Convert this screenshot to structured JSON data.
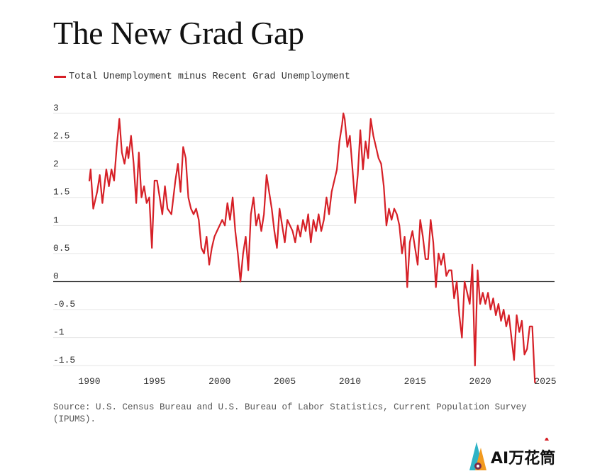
{
  "title": "The New Grad Gap",
  "source": "Source: U.S. Census Bureau and U.S. Bureau of Labor Statistics, Current Population Survey (IPUMS).",
  "colors": {
    "line": "#d62027",
    "grid": "#e6e6e6",
    "zero_line": "#333333",
    "text": "#333333"
  },
  "watermark": {
    "text": "AI万花筒"
  },
  "chart_data": {
    "type": "line",
    "title": "The New Grad Gap",
    "legend": "top-left",
    "grid": true,
    "xlabel": "",
    "ylabel": "",
    "xlim": [
      1990,
      2025
    ],
    "ylim": [
      -1.75,
      3
    ],
    "x_ticks": [
      1990,
      1995,
      2000,
      2005,
      2010,
      2015,
      2020,
      2025
    ],
    "y_ticks": [
      3,
      2.5,
      2,
      1.5,
      1,
      0.5,
      0,
      -0.5,
      -1,
      -1.5
    ],
    "y_tick_labels": [
      "3",
      "2.5",
      "2",
      "1.5",
      "1",
      "0.5",
      "0",
      "-0.5",
      "-1",
      "-1.5"
    ],
    "series": [
      {
        "name": "Total Unemployment minus Recent Grad Unemployment",
        "color": "#d62027",
        "points": [
          [
            1990.0,
            1.8
          ],
          [
            1990.1,
            2.0
          ],
          [
            1990.3,
            1.3
          ],
          [
            1990.6,
            1.6
          ],
          [
            1990.8,
            1.9
          ],
          [
            1991.0,
            1.4
          ],
          [
            1991.3,
            2.0
          ],
          [
            1991.5,
            1.7
          ],
          [
            1991.7,
            2.0
          ],
          [
            1991.9,
            1.8
          ],
          [
            1992.1,
            2.4
          ],
          [
            1992.3,
            2.9
          ],
          [
            1992.5,
            2.3
          ],
          [
            1992.7,
            2.1
          ],
          [
            1992.9,
            2.4
          ],
          [
            1993.0,
            2.2
          ],
          [
            1993.2,
            2.6
          ],
          [
            1993.4,
            2.1
          ],
          [
            1993.6,
            1.4
          ],
          [
            1993.8,
            2.3
          ],
          [
            1994.0,
            1.5
          ],
          [
            1994.2,
            1.7
          ],
          [
            1994.4,
            1.4
          ],
          [
            1994.6,
            1.5
          ],
          [
            1994.8,
            0.6
          ],
          [
            1995.0,
            1.8
          ],
          [
            1995.2,
            1.8
          ],
          [
            1995.4,
            1.5
          ],
          [
            1995.6,
            1.2
          ],
          [
            1995.8,
            1.7
          ],
          [
            1996.0,
            1.3
          ],
          [
            1996.3,
            1.2
          ],
          [
            1996.6,
            1.8
          ],
          [
            1996.8,
            2.1
          ],
          [
            1997.0,
            1.6
          ],
          [
            1997.2,
            2.4
          ],
          [
            1997.4,
            2.2
          ],
          [
            1997.6,
            1.5
          ],
          [
            1997.8,
            1.3
          ],
          [
            1998.0,
            1.2
          ],
          [
            1998.2,
            1.3
          ],
          [
            1998.4,
            1.1
          ],
          [
            1998.6,
            0.6
          ],
          [
            1998.8,
            0.5
          ],
          [
            1999.0,
            0.8
          ],
          [
            1999.2,
            0.3
          ],
          [
            1999.4,
            0.6
          ],
          [
            1999.6,
            0.8
          ],
          [
            1999.8,
            0.9
          ],
          [
            2000.0,
            1.0
          ],
          [
            2000.2,
            1.1
          ],
          [
            2000.4,
            1.0
          ],
          [
            2000.6,
            1.4
          ],
          [
            2000.8,
            1.1
          ],
          [
            2001.0,
            1.5
          ],
          [
            2001.2,
            0.9
          ],
          [
            2001.4,
            0.5
          ],
          [
            2001.6,
            0.0
          ],
          [
            2001.8,
            0.5
          ],
          [
            2002.0,
            0.8
          ],
          [
            2002.2,
            0.2
          ],
          [
            2002.4,
            1.2
          ],
          [
            2002.6,
            1.5
          ],
          [
            2002.8,
            1.0
          ],
          [
            2003.0,
            1.2
          ],
          [
            2003.2,
            0.9
          ],
          [
            2003.4,
            1.2
          ],
          [
            2003.6,
            1.9
          ],
          [
            2003.8,
            1.6
          ],
          [
            2004.0,
            1.3
          ],
          [
            2004.2,
            0.9
          ],
          [
            2004.4,
            0.6
          ],
          [
            2004.6,
            1.3
          ],
          [
            2004.8,
            1.0
          ],
          [
            2005.0,
            0.7
          ],
          [
            2005.2,
            1.1
          ],
          [
            2005.4,
            1.0
          ],
          [
            2005.6,
            0.9
          ],
          [
            2005.8,
            0.7
          ],
          [
            2006.0,
            1.0
          ],
          [
            2006.2,
            0.8
          ],
          [
            2006.4,
            1.1
          ],
          [
            2006.6,
            0.9
          ],
          [
            2006.8,
            1.2
          ],
          [
            2007.0,
            0.7
          ],
          [
            2007.2,
            1.1
          ],
          [
            2007.4,
            0.9
          ],
          [
            2007.6,
            1.2
          ],
          [
            2007.8,
            0.9
          ],
          [
            2008.0,
            1.1
          ],
          [
            2008.2,
            1.5
          ],
          [
            2008.4,
            1.2
          ],
          [
            2008.6,
            1.6
          ],
          [
            2008.8,
            1.8
          ],
          [
            2009.0,
            2.0
          ],
          [
            2009.2,
            2.5
          ],
          [
            2009.4,
            2.8
          ],
          [
            2009.5,
            3.0
          ],
          [
            2009.6,
            2.9
          ],
          [
            2009.8,
            2.4
          ],
          [
            2010.0,
            2.6
          ],
          [
            2010.2,
            2.0
          ],
          [
            2010.4,
            1.4
          ],
          [
            2010.6,
            1.9
          ],
          [
            2010.8,
            2.7
          ],
          [
            2011.0,
            2.0
          ],
          [
            2011.2,
            2.5
          ],
          [
            2011.4,
            2.2
          ],
          [
            2011.6,
            2.9
          ],
          [
            2011.8,
            2.6
          ],
          [
            2012.0,
            2.4
          ],
          [
            2012.2,
            2.2
          ],
          [
            2012.4,
            2.1
          ],
          [
            2012.6,
            1.7
          ],
          [
            2012.8,
            1.0
          ],
          [
            2013.0,
            1.3
          ],
          [
            2013.2,
            1.1
          ],
          [
            2013.4,
            1.3
          ],
          [
            2013.6,
            1.2
          ],
          [
            2013.8,
            1.0
          ],
          [
            2014.0,
            0.5
          ],
          [
            2014.2,
            0.8
          ],
          [
            2014.4,
            -0.1
          ],
          [
            2014.6,
            0.7
          ],
          [
            2014.8,
            0.9
          ],
          [
            2015.0,
            0.6
          ],
          [
            2015.2,
            0.3
          ],
          [
            2015.4,
            1.1
          ],
          [
            2015.6,
            0.8
          ],
          [
            2015.8,
            0.4
          ],
          [
            2016.0,
            0.4
          ],
          [
            2016.2,
            1.1
          ],
          [
            2016.4,
            0.7
          ],
          [
            2016.6,
            -0.1
          ],
          [
            2016.8,
            0.5
          ],
          [
            2017.0,
            0.3
          ],
          [
            2017.2,
            0.5
          ],
          [
            2017.4,
            0.1
          ],
          [
            2017.6,
            0.2
          ],
          [
            2017.8,
            0.2
          ],
          [
            2018.0,
            -0.3
          ],
          [
            2018.2,
            0.0
          ],
          [
            2018.4,
            -0.6
          ],
          [
            2018.6,
            -1.0
          ],
          [
            2018.8,
            0.0
          ],
          [
            2019.0,
            -0.2
          ],
          [
            2019.2,
            -0.4
          ],
          [
            2019.4,
            0.3
          ],
          [
            2019.6,
            -1.5
          ],
          [
            2019.8,
            0.2
          ],
          [
            2020.0,
            -0.4
          ],
          [
            2020.2,
            -0.2
          ],
          [
            2020.4,
            -0.4
          ],
          [
            2020.6,
            -0.2
          ],
          [
            2020.8,
            -0.5
          ],
          [
            2021.0,
            -0.3
          ],
          [
            2021.2,
            -0.6
          ],
          [
            2021.4,
            -0.4
          ],
          [
            2021.6,
            -0.7
          ],
          [
            2021.8,
            -0.5
          ],
          [
            2022.0,
            -0.8
          ],
          [
            2022.2,
            -0.6
          ],
          [
            2022.4,
            -1.0
          ],
          [
            2022.6,
            -1.4
          ],
          [
            2022.8,
            -0.6
          ],
          [
            2023.0,
            -0.9
          ],
          [
            2023.2,
            -0.7
          ],
          [
            2023.4,
            -1.3
          ],
          [
            2023.6,
            -1.2
          ],
          [
            2023.8,
            -0.8
          ],
          [
            2024.0,
            -0.8
          ],
          [
            2024.2,
            -1.8
          ]
        ]
      }
    ]
  }
}
